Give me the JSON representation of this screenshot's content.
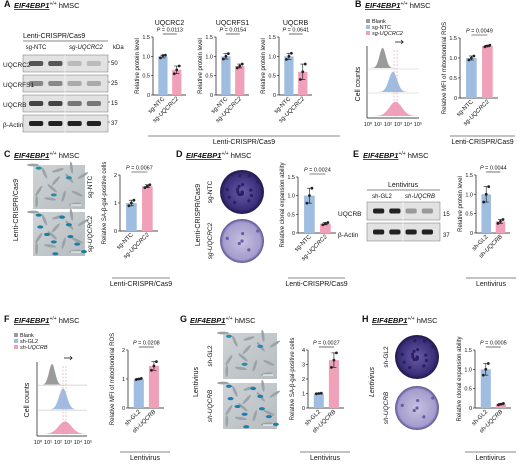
{
  "gene_header": "EIF4EBP1",
  "gene_sup": "+/+",
  "cell": "hMSC",
  "colors": {
    "ctrl": "#9fbde0",
    "exp": "#f0a0b8",
    "blank": "#9b9b9b",
    "bg": "#ffffff"
  },
  "labels": {
    "lenti_crispr": "Lenti-CRISPR/Cas9",
    "lentivirus": "Lentivirus",
    "sg_ntc": "sg-NTC",
    "sg_uqcrc2": "sg-UQCRC2",
    "sh_gl2": "sh-GL2",
    "sh_uqcrb": "sh-UQCRB",
    "kda": "kDa",
    "blank": "Blank",
    "cell_counts": "Cell counts",
    "rel_protein": "Relative protein level",
    "rel_mfi": "Relative MFI of mitochondrial ROS",
    "rel_sa": "Relative SA-β-gal-positive cells",
    "rel_clonal": "Relative clonal expansion ability"
  },
  "panels": {
    "A": {
      "letter": "A",
      "blot_rows": [
        "UQCRC2",
        "UQCRFS1",
        "UQCRB",
        "β-Actin"
      ],
      "blot_kda": [
        "50",
        "25",
        "15",
        "37"
      ],
      "charts": [
        {
          "title": "UQCRC2",
          "p": "P = 0.0113"
        },
        {
          "title": "UQCRFS1",
          "p": "P = 0.0154"
        },
        {
          "title": "UQCRB",
          "p": "P = 0.0641"
        }
      ]
    },
    "B": {
      "letter": "B",
      "p": "P = 0.0049",
      "flow_x_ticks": [
        "10⁰",
        "10¹",
        "10²",
        "10³",
        "10⁴",
        "10⁵"
      ]
    },
    "C": {
      "letter": "C",
      "p": "P = 0.0067"
    },
    "D": {
      "letter": "D",
      "p": "P = 0.0024"
    },
    "E": {
      "letter": "E",
      "p": "P = 0.0044",
      "blot_rows": [
        "UQCRB",
        "β-Actin"
      ],
      "blot_kda": [
        "15",
        "37"
      ]
    },
    "F": {
      "letter": "F",
      "p": "P = 0.0208",
      "flow_x_ticks": [
        "10⁰",
        "10¹",
        "10²",
        "10³",
        "10⁴",
        "10⁵"
      ]
    },
    "G": {
      "letter": "G",
      "p": "P = 0.0027"
    },
    "H": {
      "letter": "H",
      "p": "P = 0.0005"
    }
  },
  "chart_data": [
    {
      "panel": "A1",
      "type": "bar",
      "title": "UQCRC2",
      "categories": [
        "sg-NTC",
        "sg-UQCRC2"
      ],
      "values": [
        1.0,
        0.65
      ],
      "points": [
        [
          0.96,
          1.02,
          1.03
        ],
        [
          0.55,
          0.65,
          0.75
        ]
      ],
      "ylabel": "Relative protein level",
      "ylim": [
        0,
        1.5
      ],
      "yticks": [
        "0",
        "0.5",
        "1.0",
        "1.5"
      ]
    },
    {
      "panel": "A2",
      "type": "bar",
      "title": "UQCRFS1",
      "categories": [
        "sg-NTC",
        "sg-UQCRC2"
      ],
      "values": [
        1.0,
        0.75
      ],
      "points": [
        [
          0.93,
          1.0,
          1.07
        ],
        [
          0.7,
          0.75,
          0.8
        ]
      ],
      "ylabel": "Relative protein level",
      "ylim": [
        0,
        1.5
      ],
      "yticks": [
        "0",
        "0.5",
        "1.0",
        "1.5"
      ]
    },
    {
      "panel": "A3",
      "type": "bar",
      "title": "UQCRB",
      "categories": [
        "sg-NTC",
        "sg-UQCRC2"
      ],
      "values": [
        1.0,
        0.6
      ],
      "points": [
        [
          0.92,
          1.0,
          1.08
        ],
        [
          0.4,
          0.6,
          0.8
        ]
      ],
      "ylabel": "Relative protein level",
      "ylim": [
        0,
        1.5
      ],
      "yticks": [
        "0",
        "0.5",
        "1.0",
        "1.5"
      ]
    },
    {
      "panel": "B",
      "type": "bar",
      "categories": [
        "sg-NTC",
        "sg-UQCRC2"
      ],
      "values": [
        1.0,
        1.3
      ],
      "points": [
        [
          0.95,
          1.0,
          1.05
        ],
        [
          1.28,
          1.3,
          1.32
        ]
      ],
      "ylabel": "Relative MFI of mitochondrial ROS",
      "ylim": [
        0,
        1.5
      ],
      "yticks": [
        "0",
        "0.5",
        "1.0",
        "1.5"
      ]
    },
    {
      "panel": "C",
      "type": "bar",
      "categories": [
        "sg-NTC",
        "sg-UQCRC2"
      ],
      "values": [
        1.0,
        1.6
      ],
      "points": [
        [
          0.9,
          1.0,
          1.1
        ],
        [
          1.55,
          1.6,
          1.65
        ]
      ],
      "ylabel": "Relative SA-β-gal-positive cells",
      "ylim": [
        0,
        2.0
      ],
      "yticks": [
        "0",
        "1",
        "2"
      ]
    },
    {
      "panel": "D",
      "type": "bar",
      "categories": [
        "sg-NTC",
        "sg-UQCRC2"
      ],
      "values": [
        1.0,
        0.25
      ],
      "points": [
        [
          0.8,
          1.0,
          1.2
        ],
        [
          0.22,
          0.25,
          0.28
        ]
      ],
      "ylabel": "Relative clonal expansion ability",
      "ylim": [
        0,
        1.5
      ],
      "yticks": [
        "0",
        "0.5",
        "1.0",
        "1.5"
      ]
    },
    {
      "panel": "E",
      "type": "bar",
      "categories": [
        "sh-GL2",
        "sh-UQCRB"
      ],
      "values": [
        1.0,
        0.3
      ],
      "points": [
        [
          0.8,
          1.0,
          1.2
        ],
        [
          0.25,
          0.3,
          0.35
        ]
      ],
      "ylabel": "Relative protein level",
      "ylim": [
        0,
        1.5
      ],
      "yticks": [
        "0",
        "0.5",
        "1.0",
        "1.5"
      ]
    },
    {
      "panel": "F",
      "type": "bar",
      "categories": [
        "sh-GL2",
        "sh-UQCRB"
      ],
      "values": [
        1.0,
        1.45
      ],
      "points": [
        [
          0.98,
          1.0,
          1.02
        ],
        [
          1.3,
          1.45,
          1.6
        ]
      ],
      "ylabel": "Relative MFI of mitochondrial ROS",
      "ylim": [
        0,
        2.0
      ],
      "yticks": [
        "0",
        "1",
        "2"
      ]
    },
    {
      "panel": "G",
      "type": "bar",
      "categories": [
        "sh-GL2",
        "sh-UQCRB"
      ],
      "values": [
        1.0,
        3.3
      ],
      "points": [
        [
          0.98,
          1.0,
          1.02
        ],
        [
          2.8,
          3.3,
          3.8
        ]
      ],
      "ylabel": "Relative SA-β-gal-positive cells",
      "ylim": [
        0,
        4
      ],
      "yticks": [
        "0",
        "1",
        "2",
        "3",
        "4"
      ]
    },
    {
      "panel": "H",
      "type": "bar",
      "categories": [
        "sh-GL2",
        "sh-UQCRB"
      ],
      "values": [
        1.0,
        0.1
      ],
      "points": [
        [
          0.85,
          1.0,
          1.15
        ],
        [
          0.08,
          0.1,
          0.12
        ]
      ],
      "ylabel": "Relative clonal expansion ability",
      "ylim": [
        0,
        1.5
      ],
      "yticks": [
        "0",
        "0.5",
        "1.0",
        "1.5"
      ]
    }
  ]
}
